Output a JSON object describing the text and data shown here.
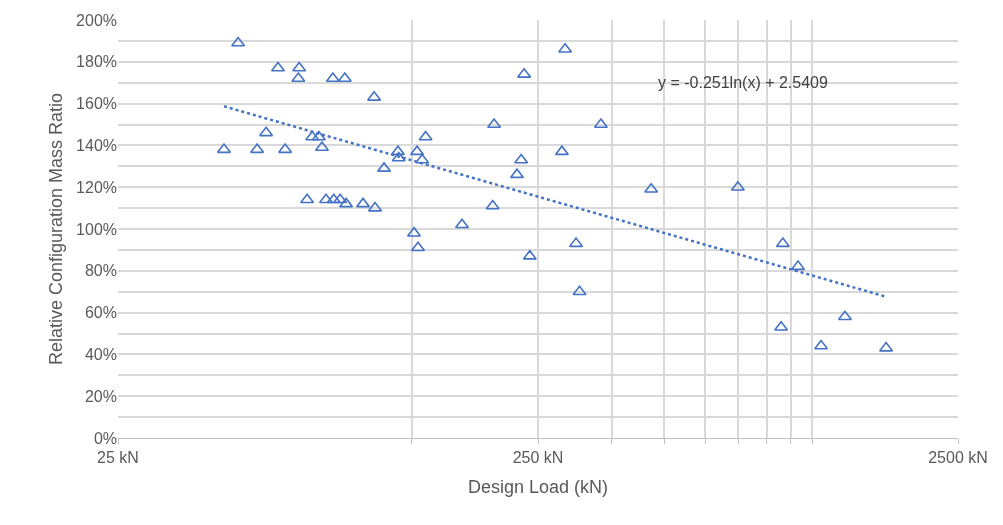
{
  "chart_data": {
    "type": "scatter",
    "xlabel": "Design Load (kN)",
    "ylabel": "Relative Configuration Mass Ratio",
    "log": "x",
    "grid": true,
    "marker": "triangle",
    "xlim": [
      25,
      2500
    ],
    "xticks": [
      {
        "value": 25,
        "label": "25 kN"
      },
      {
        "value": 125,
        "label": null
      },
      {
        "value": 250,
        "label": "250 kN"
      },
      {
        "value": 375,
        "label": null
      },
      {
        "value": 500,
        "label": null
      },
      {
        "value": 625,
        "label": null
      },
      {
        "value": 750,
        "label": null
      },
      {
        "value": 875,
        "label": null
      },
      {
        "value": 1000,
        "label": null
      },
      {
        "value": 1125,
        "label": null
      },
      {
        "value": 2500,
        "label": "2500 kN"
      }
    ],
    "ylim": [
      0,
      200
    ],
    "yticks": [
      {
        "value": 0,
        "label": "0%"
      },
      {
        "value": 10,
        "label": null
      },
      {
        "value": 20,
        "label": "20%"
      },
      {
        "value": 30,
        "label": null
      },
      {
        "value": 40,
        "label": "40%"
      },
      {
        "value": 50,
        "label": null
      },
      {
        "value": 60,
        "label": "60%"
      },
      {
        "value": 70,
        "label": null
      },
      {
        "value": 80,
        "label": "80%"
      },
      {
        "value": 90,
        "label": null
      },
      {
        "value": 100,
        "label": "100%"
      },
      {
        "value": 110,
        "label": null
      },
      {
        "value": 120,
        "label": "120%"
      },
      {
        "value": 130,
        "label": null
      },
      {
        "value": 140,
        "label": "140%"
      },
      {
        "value": 150,
        "label": null
      },
      {
        "value": 160,
        "label": "160%"
      },
      {
        "value": 170,
        "label": null
      },
      {
        "value": 180,
        "label": "180%"
      },
      {
        "value": 190,
        "label": null
      },
      {
        "value": 200,
        "label": "200%"
      }
    ],
    "annotations": [
      "y = -0.251ln(x) + 2.5409"
    ],
    "series": [
      {
        "color": "#4472c4",
        "x": [
          44.7,
          48.3,
          53.6,
          56.3,
          60.1,
          62.5,
          67.5,
          67.2,
          70.5,
          72.5,
          75.2,
          76.5,
          78.2,
          81.2,
          81.6,
          84.5,
          86.7,
          87.3,
          95.8,
          101.8,
          102.3,
          107.5,
          116,
          116.5,
          126.7,
          128.8,
          129.5,
          132.5,
          135,
          164.8,
          195,
          196.5,
          222.8,
          228,
          231.7,
          239,
          285,
          290,
          308,
          314,
          353,
          465,
          748,
          948,
          957,
          1040,
          1180,
          1345,
          1685
        ],
        "values": [
          138,
          189,
          138,
          146,
          177,
          138,
          177,
          172,
          114,
          144,
          144,
          139,
          114,
          172,
          114,
          114,
          172,
          112,
          112,
          163,
          110,
          129,
          137,
          134,
          98,
          137,
          91,
          133,
          144,
          102,
          111,
          150,
          126,
          133,
          174,
          87,
          137,
          186,
          93,
          70,
          150,
          119,
          120,
          53,
          93,
          82,
          44,
          58,
          43
        ]
      },
      {
        "type": "line",
        "color": "#4472c4",
        "line_style": "dotted",
        "marker": "none",
        "x": [
          44.7,
          1685
        ],
        "values": [
          158.7,
          67.6
        ]
      }
    ]
  }
}
